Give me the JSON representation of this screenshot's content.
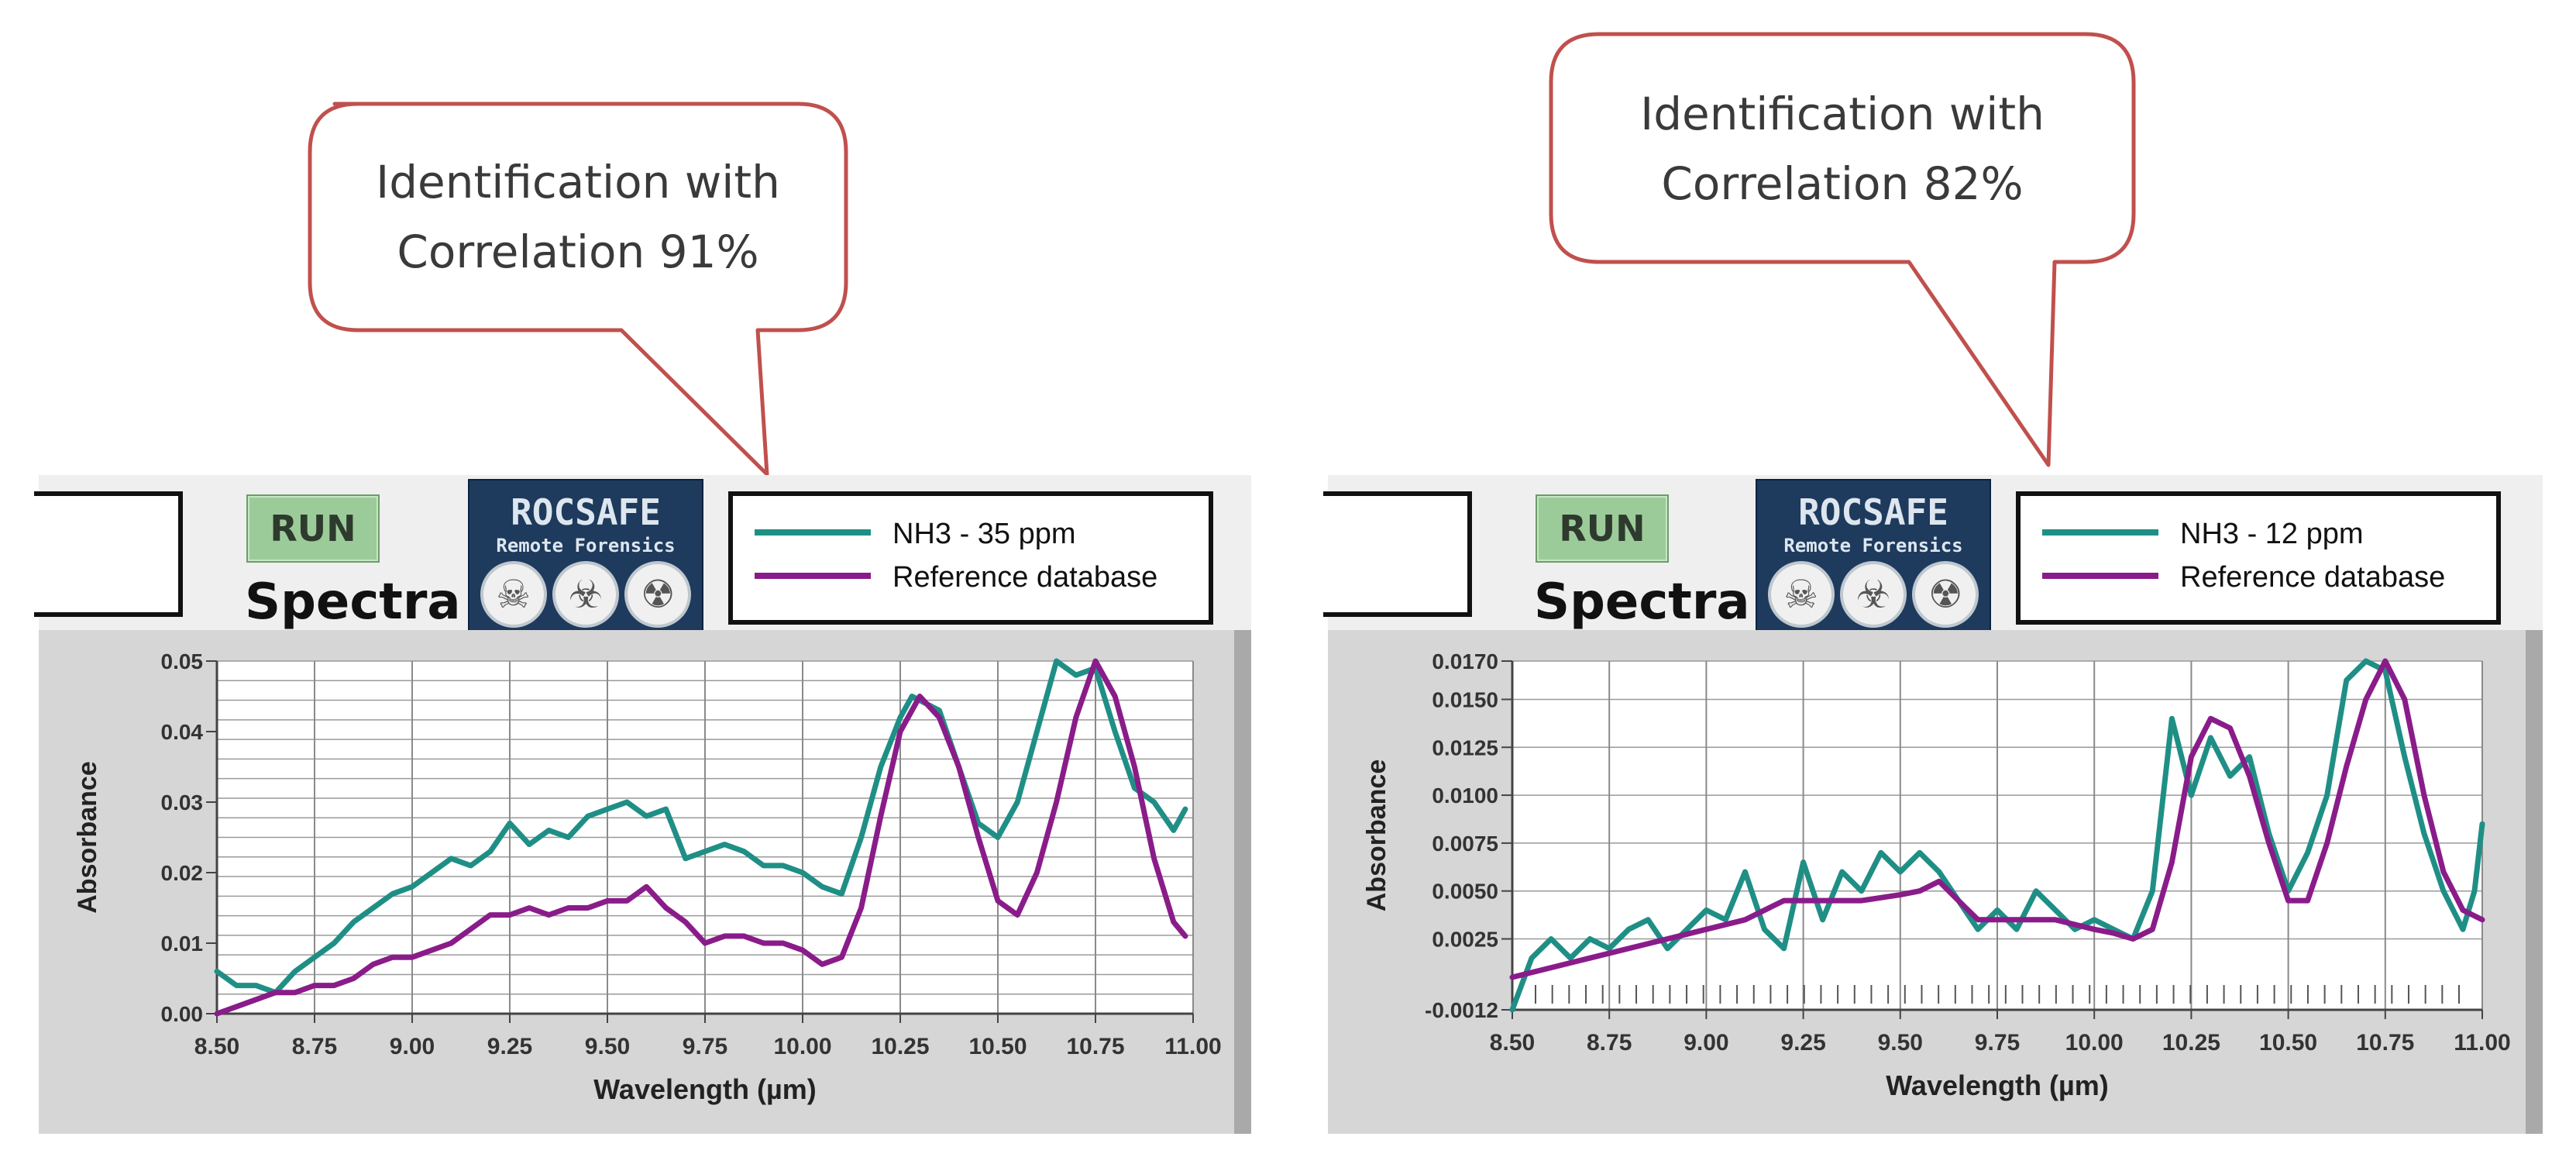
{
  "panels": [
    {
      "callout": {
        "line1": "Identification with",
        "line2": "Correlation 91%"
      },
      "run_label": "RUN",
      "spectra_label": "Spectra",
      "logo": {
        "line1": "ROCSAFE",
        "line2": "Remote Forensics",
        "icons": [
          "skull-icon",
          "biohazard-icon",
          "radiation-icon"
        ]
      },
      "legend": [
        {
          "label": "NH3 - 35 ppm",
          "color": "#1f8f86"
        },
        {
          "label": "Reference database",
          "color": "#8a1c8a"
        }
      ]
    },
    {
      "callout": {
        "line1": "Identification with",
        "line2": "Correlation 82%"
      },
      "run_label": "RUN",
      "spectra_label": "Spectra",
      "logo": {
        "line1": "ROCSAFE",
        "line2": "Remote Forensics",
        "icons": [
          "skull-icon",
          "biohazard-icon",
          "radiation-icon"
        ]
      },
      "legend": [
        {
          "label": "NH3 - 12 ppm",
          "color": "#1f8f86"
        },
        {
          "label": "Reference database",
          "color": "#8a1c8a"
        }
      ]
    }
  ],
  "chart_data": [
    {
      "type": "line",
      "xlabel": "Wavelength (µm)",
      "ylabel": "Absorbance",
      "xlim": [
        8.5,
        11.0
      ],
      "ylim": [
        0.0,
        0.05
      ],
      "xticks": [
        "8.50",
        "8.75",
        "9.00",
        "9.25",
        "9.50",
        "9.75",
        "10.00",
        "10.25",
        "10.50",
        "10.75",
        "11.00"
      ],
      "yticks": [
        {
          "v": 0.0,
          "label": "0.00"
        },
        {
          "v": 0.01,
          "label": "0.01"
        },
        {
          "v": 0.02,
          "label": "0.02"
        },
        {
          "v": 0.03,
          "label": "0.03"
        },
        {
          "v": 0.04,
          "label": "0.04"
        },
        {
          "v": 0.05,
          "label": "0.05"
        }
      ],
      "grid": "x-major, y-dense",
      "series": [
        {
          "name": "NH3 - 35 ppm",
          "color": "#1f8f86",
          "x": [
            8.5,
            8.55,
            8.6,
            8.65,
            8.7,
            8.75,
            8.8,
            8.85,
            8.9,
            8.95,
            9.0,
            9.05,
            9.1,
            9.15,
            9.2,
            9.25,
            9.3,
            9.35,
            9.4,
            9.45,
            9.5,
            9.55,
            9.6,
            9.65,
            9.7,
            9.75,
            9.8,
            9.85,
            9.9,
            9.95,
            10.0,
            10.05,
            10.1,
            10.15,
            10.2,
            10.25,
            10.28,
            10.35,
            10.4,
            10.45,
            10.5,
            10.55,
            10.6,
            10.65,
            10.7,
            10.75,
            10.8,
            10.85,
            10.9,
            10.95,
            10.98
          ],
          "y": [
            0.006,
            0.004,
            0.004,
            0.003,
            0.006,
            0.008,
            0.01,
            0.013,
            0.015,
            0.017,
            0.018,
            0.02,
            0.022,
            0.021,
            0.023,
            0.027,
            0.024,
            0.026,
            0.025,
            0.028,
            0.029,
            0.03,
            0.028,
            0.029,
            0.022,
            0.023,
            0.024,
            0.023,
            0.021,
            0.021,
            0.02,
            0.018,
            0.017,
            0.025,
            0.035,
            0.042,
            0.045,
            0.043,
            0.035,
            0.027,
            0.025,
            0.03,
            0.04,
            0.05,
            0.048,
            0.049,
            0.04,
            0.032,
            0.03,
            0.026,
            0.029
          ]
        },
        {
          "name": "Reference database",
          "color": "#8a1c8a",
          "x": [
            8.5,
            8.55,
            8.6,
            8.65,
            8.7,
            8.75,
            8.8,
            8.85,
            8.9,
            8.95,
            9.0,
            9.05,
            9.1,
            9.15,
            9.2,
            9.25,
            9.3,
            9.35,
            9.4,
            9.45,
            9.5,
            9.55,
            9.6,
            9.65,
            9.7,
            9.75,
            9.8,
            9.85,
            9.9,
            9.95,
            10.0,
            10.05,
            10.1,
            10.15,
            10.2,
            10.25,
            10.3,
            10.35,
            10.4,
            10.45,
            10.5,
            10.55,
            10.6,
            10.65,
            10.7,
            10.75,
            10.8,
            10.85,
            10.9,
            10.95,
            10.98
          ],
          "y": [
            0.0,
            0.001,
            0.002,
            0.003,
            0.003,
            0.004,
            0.004,
            0.005,
            0.007,
            0.008,
            0.008,
            0.009,
            0.01,
            0.012,
            0.014,
            0.014,
            0.015,
            0.014,
            0.015,
            0.015,
            0.016,
            0.016,
            0.018,
            0.015,
            0.013,
            0.01,
            0.011,
            0.011,
            0.01,
            0.01,
            0.009,
            0.007,
            0.008,
            0.015,
            0.028,
            0.04,
            0.045,
            0.042,
            0.035,
            0.025,
            0.016,
            0.014,
            0.02,
            0.03,
            0.042,
            0.05,
            0.045,
            0.035,
            0.022,
            0.013,
            0.011
          ]
        }
      ]
    },
    {
      "type": "line",
      "xlabel": "Wavelength (µm)",
      "ylabel": "Absorbance",
      "xlim": [
        8.5,
        11.0
      ],
      "ylim": [
        -0.0012,
        0.017
      ],
      "xticks": [
        "8.50",
        "8.75",
        "9.00",
        "9.25",
        "9.50",
        "9.75",
        "10.00",
        "10.25",
        "10.50",
        "10.75",
        "11.00"
      ],
      "yticks": [
        {
          "v": -0.0012,
          "label": "-0.0012"
        },
        {
          "v": 0.0025,
          "label": "0.0025"
        },
        {
          "v": 0.005,
          "label": "0.0050"
        },
        {
          "v": 0.0075,
          "label": "0.0075"
        },
        {
          "v": 0.01,
          "label": "0.0100"
        },
        {
          "v": 0.0125,
          "label": "0.0125"
        },
        {
          "v": 0.015,
          "label": "0.0150"
        },
        {
          "v": 0.017,
          "label": "0.0170"
        }
      ],
      "grid": "on",
      "series": [
        {
          "name": "NH3 - 12 ppm",
          "color": "#1f8f86",
          "x": [
            8.5,
            8.55,
            8.6,
            8.65,
            8.7,
            8.75,
            8.8,
            8.85,
            8.9,
            8.95,
            9.0,
            9.05,
            9.1,
            9.15,
            9.2,
            9.25,
            9.3,
            9.35,
            9.4,
            9.45,
            9.5,
            9.55,
            9.6,
            9.65,
            9.7,
            9.75,
            9.8,
            9.85,
            9.9,
            9.95,
            10.0,
            10.05,
            10.1,
            10.15,
            10.2,
            10.25,
            10.3,
            10.35,
            10.4,
            10.45,
            10.5,
            10.55,
            10.6,
            10.65,
            10.7,
            10.75,
            10.8,
            10.85,
            10.9,
            10.95,
            10.98,
            11.0
          ],
          "y": [
            -0.0012,
            0.0015,
            0.0025,
            0.0015,
            0.0025,
            0.002,
            0.003,
            0.0035,
            0.002,
            0.003,
            0.004,
            0.0035,
            0.006,
            0.003,
            0.002,
            0.0065,
            0.0035,
            0.006,
            0.005,
            0.007,
            0.006,
            0.007,
            0.006,
            0.0045,
            0.003,
            0.004,
            0.003,
            0.005,
            0.004,
            0.003,
            0.0035,
            0.003,
            0.0025,
            0.005,
            0.014,
            0.01,
            0.013,
            0.011,
            0.012,
            0.008,
            0.005,
            0.007,
            0.01,
            0.016,
            0.017,
            0.0165,
            0.012,
            0.008,
            0.005,
            0.003,
            0.005,
            0.0085
          ]
        },
        {
          "name": "Reference database",
          "color": "#8a1c8a",
          "x": [
            8.5,
            8.6,
            8.7,
            8.8,
            8.9,
            9.0,
            9.1,
            9.2,
            9.3,
            9.4,
            9.5,
            9.55,
            9.6,
            9.65,
            9.7,
            9.8,
            9.9,
            10.0,
            10.05,
            10.1,
            10.15,
            10.2,
            10.25,
            10.3,
            10.35,
            10.4,
            10.45,
            10.5,
            10.55,
            10.6,
            10.65,
            10.7,
            10.75,
            10.8,
            10.85,
            10.9,
            10.95,
            11.0
          ],
          "y": [
            0.0005,
            0.001,
            0.0015,
            0.002,
            0.0025,
            0.003,
            0.0035,
            0.0045,
            0.0045,
            0.0045,
            0.0048,
            0.005,
            0.0055,
            0.0045,
            0.0035,
            0.0035,
            0.0035,
            0.003,
            0.0028,
            0.0025,
            0.003,
            0.0065,
            0.012,
            0.014,
            0.0135,
            0.011,
            0.0075,
            0.0045,
            0.0045,
            0.0075,
            0.0115,
            0.015,
            0.017,
            0.015,
            0.01,
            0.006,
            0.004,
            0.0035
          ]
        }
      ]
    }
  ]
}
